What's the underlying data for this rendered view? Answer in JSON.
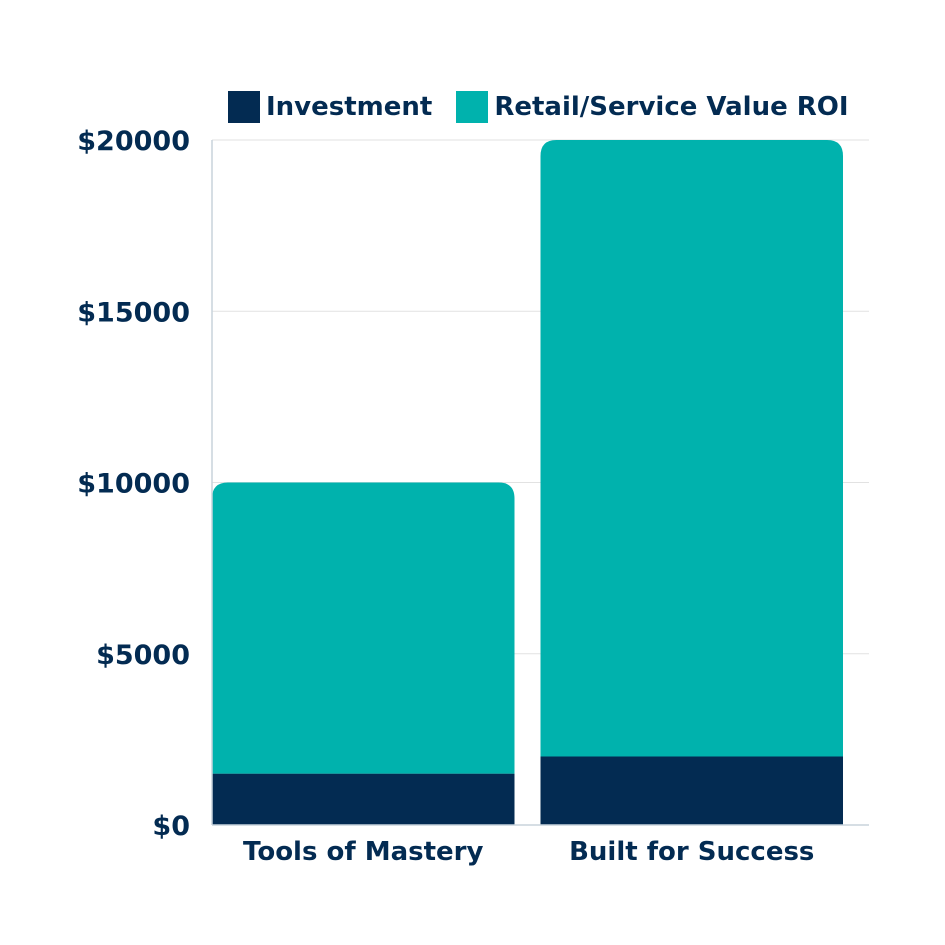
{
  "colors": {
    "investment": "#032b52",
    "roi": "#00b2ad",
    "text": "#032b52",
    "grid": "#e2e2e2",
    "axis": "#c8d3dc"
  },
  "legend": {
    "investment_label": "Investment",
    "roi_label": "Retail/Service Value ROI"
  },
  "chart_data": {
    "type": "bar",
    "stacked": true,
    "categories": [
      "Tools of Mastery",
      "Built for Success"
    ],
    "series": [
      {
        "name": "Investment",
        "values": [
          1500,
          2000
        ]
      },
      {
        "name": "Retail/Service Value ROI",
        "values": [
          8500,
          18000
        ]
      }
    ],
    "ylim": [
      0,
      20000
    ],
    "yticks": [
      0,
      5000,
      10000,
      15000,
      20000
    ],
    "ytick_labels": [
      "$0",
      "$5000",
      "$10000",
      "$15000",
      "$20000"
    ],
    "grid": true,
    "legend_position": "top"
  }
}
